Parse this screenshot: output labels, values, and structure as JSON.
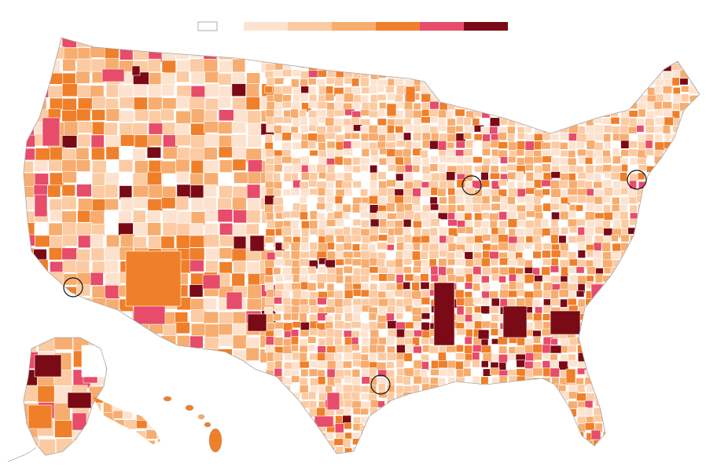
{
  "legend": {
    "no_data_color": "#ffffff",
    "no_data_border": "#9a9a9a",
    "bins": [
      {
        "color": "#fde3cf"
      },
      {
        "color": "#fccba3"
      },
      {
        "color": "#f7ad6f"
      },
      {
        "color": "#f07f2a"
      },
      {
        "color": "#e74c6a"
      },
      {
        "color": "#7a0a16"
      }
    ]
  },
  "map": {
    "boundary_color": "#ffffff",
    "outline_color": "#a7a7a7",
    "highlight_circles": [
      {
        "name": "los-angeles-marker"
      },
      {
        "name": "houston-marker"
      },
      {
        "name": "chicago-marker"
      },
      {
        "name": "new-york-marker"
      }
    ]
  }
}
